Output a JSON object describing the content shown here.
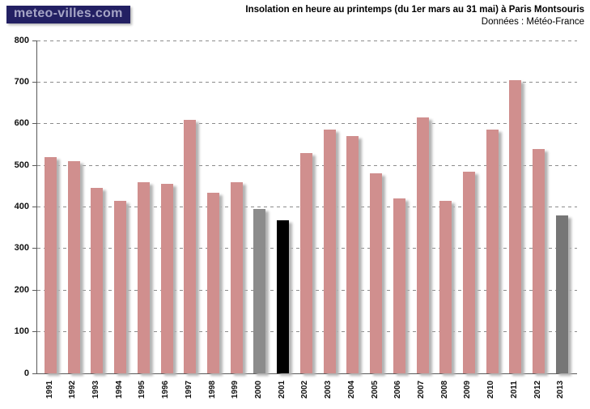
{
  "logo": {
    "text": "meteo-villes.com"
  },
  "header": {
    "title": "Insolation en heure au printemps (du 1er mars au 31 mai) à Paris Montsouris",
    "subtitle": "Données : Météo-France"
  },
  "colors": {
    "bar_default": "#d08f8e",
    "bar_gray_2000": "#8c8c8c",
    "bar_black_2001": "#000000",
    "bar_gray_2013": "#767676",
    "logo_background": "#232063",
    "logo_text": "#a6a5c6",
    "axis": "#595959",
    "gridline": "#8c8c8c"
  },
  "chart_data": {
    "type": "bar",
    "title": "Insolation en heure au printemps (du 1er mars au 31 mai) à Paris Montsouris",
    "subtitle": "Données : Météo-France",
    "xlabel": "",
    "ylabel": "",
    "ylim": [
      0,
      800
    ],
    "ytick_step": 100,
    "yticks": [
      0,
      100,
      200,
      300,
      400,
      500,
      600,
      700,
      800
    ],
    "grid": "horizontal-dashed",
    "legend": "none",
    "categories": [
      "1991",
      "1992",
      "1993",
      "1994",
      "1995",
      "1996",
      "1997",
      "1998",
      "1999",
      "2000",
      "2001",
      "2002",
      "2003",
      "2004",
      "2005",
      "2006",
      "2007",
      "2008",
      "2009",
      "2010",
      "2011",
      "2012",
      "2013"
    ],
    "values": [
      520,
      510,
      445,
      415,
      460,
      455,
      610,
      435,
      460,
      395,
      368,
      530,
      585,
      570,
      480,
      420,
      615,
      415,
      485,
      585,
      705,
      540,
      380
    ],
    "bar_colors": [
      "#d08f8e",
      "#d08f8e",
      "#d08f8e",
      "#d08f8e",
      "#d08f8e",
      "#d08f8e",
      "#d08f8e",
      "#d08f8e",
      "#d08f8e",
      "#8c8c8c",
      "#000000",
      "#d08f8e",
      "#d08f8e",
      "#d08f8e",
      "#d08f8e",
      "#d08f8e",
      "#d08f8e",
      "#d08f8e",
      "#d08f8e",
      "#d08f8e",
      "#d08f8e",
      "#d08f8e",
      "#767676"
    ]
  }
}
